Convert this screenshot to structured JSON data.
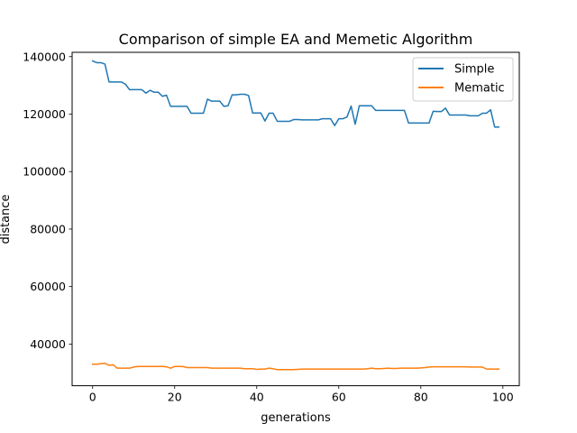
{
  "chart_data": {
    "type": "line",
    "title": "Comparison of simple EA and Memetic Algorithm",
    "xlabel": "generations",
    "ylabel": "distance",
    "xlim": [
      -5,
      104
    ],
    "ylim": [
      25500,
      141500
    ],
    "xticks": [
      0,
      20,
      40,
      60,
      80,
      100
    ],
    "xtick_labels": [
      "0",
      "20",
      "40",
      "60",
      "80",
      "100"
    ],
    "yticks": [
      40000,
      60000,
      80000,
      100000,
      120000,
      140000
    ],
    "ytick_labels": [
      "40000",
      "60000",
      "80000",
      "100000",
      "120000",
      "140000"
    ],
    "grid": false,
    "legend_position": "top-right",
    "colors": {
      "Simple": "#1f77b4",
      "Mematic": "#ff7f0e"
    },
    "x": [
      0,
      1,
      2,
      3,
      4,
      5,
      6,
      7,
      8,
      9,
      10,
      11,
      12,
      13,
      14,
      15,
      16,
      17,
      18,
      19,
      20,
      21,
      22,
      23,
      24,
      25,
      26,
      27,
      28,
      29,
      30,
      31,
      32,
      33,
      34,
      35,
      36,
      37,
      38,
      39,
      40,
      41,
      42,
      43,
      44,
      45,
      46,
      47,
      48,
      49,
      50,
      51,
      52,
      53,
      54,
      55,
      56,
      57,
      58,
      59,
      60,
      61,
      62,
      63,
      64,
      65,
      66,
      67,
      68,
      69,
      70,
      71,
      72,
      73,
      74,
      75,
      76,
      77,
      78,
      79,
      80,
      81,
      82,
      83,
      84,
      85,
      86,
      87,
      88,
      89,
      90,
      91,
      92,
      93,
      94,
      95,
      96,
      97,
      98,
      99
    ],
    "series": [
      {
        "name": "Simple",
        "values": [
          138500,
          137900,
          137900,
          137400,
          131200,
          131200,
          131200,
          131200,
          130400,
          128500,
          128500,
          128500,
          128500,
          127300,
          128300,
          127600,
          127600,
          126200,
          126600,
          122700,
          122700,
          122700,
          122700,
          122700,
          120300,
          120300,
          120300,
          120300,
          125200,
          124500,
          124500,
          124500,
          122700,
          122900,
          126700,
          126700,
          126900,
          126900,
          126500,
          120400,
          120400,
          120400,
          117600,
          120300,
          120300,
          117500,
          117500,
          117500,
          117500,
          118100,
          118100,
          118000,
          118000,
          118000,
          118000,
          118000,
          118400,
          118400,
          118400,
          116000,
          118400,
          118400,
          119000,
          122800,
          116500,
          122900,
          122900,
          122900,
          122900,
          121300,
          121300,
          121300,
          121300,
          121300,
          121300,
          121300,
          121300,
          116900,
          116900,
          116900,
          116900,
          116900,
          116900,
          121000,
          120900,
          120900,
          122100,
          119700,
          119700,
          119700,
          119700,
          119700,
          119400,
          119400,
          119400,
          120300,
          120300,
          121500,
          115500,
          115500
        ]
      },
      {
        "name": "Mematic",
        "values": [
          33000,
          33000,
          33200,
          33300,
          32600,
          32800,
          31600,
          31600,
          31600,
          31600,
          32000,
          32200,
          32200,
          32200,
          32200,
          32200,
          32200,
          32200,
          32100,
          31600,
          32200,
          32200,
          32200,
          31800,
          31800,
          31800,
          31800,
          31800,
          31800,
          31600,
          31600,
          31600,
          31600,
          31600,
          31600,
          31600,
          31600,
          31400,
          31400,
          31400,
          31200,
          31300,
          31300,
          31600,
          31400,
          31100,
          31100,
          31100,
          31100,
          31100,
          31200,
          31300,
          31300,
          31300,
          31300,
          31300,
          31300,
          31300,
          31300,
          31300,
          31300,
          31300,
          31300,
          31300,
          31300,
          31300,
          31300,
          31400,
          31600,
          31400,
          31400,
          31500,
          31600,
          31500,
          31500,
          31600,
          31600,
          31600,
          31600,
          31600,
          31700,
          31800,
          32000,
          32100,
          32100,
          32100,
          32100,
          32100,
          32100,
          32100,
          32100,
          32100,
          32000,
          32000,
          32000,
          32000,
          31300,
          31300,
          31300,
          31300
        ]
      }
    ]
  }
}
